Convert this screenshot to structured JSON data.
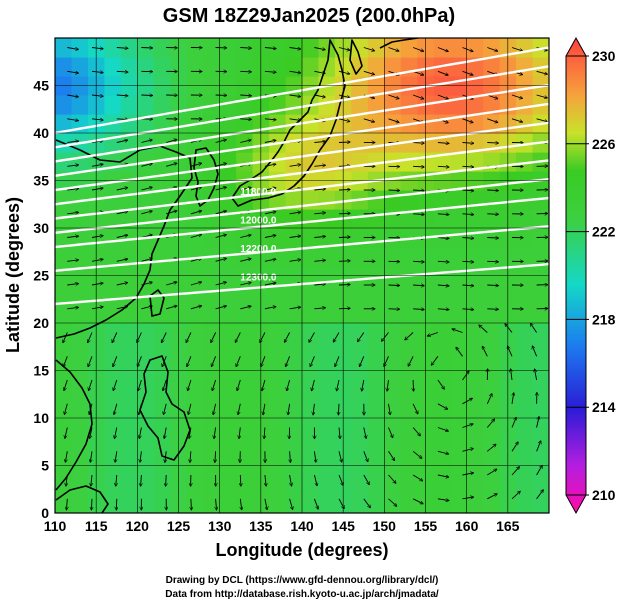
{
  "chart_data": {
    "type": "heatmap",
    "title": "GSM 18Z29Jan2025 (200.0hPa)",
    "xlabel": "Longitude (degrees)",
    "ylabel": "Latitude  (degrees)",
    "xlim": [
      110,
      170
    ],
    "ylim": [
      0,
      50
    ],
    "x_ticks": [
      110,
      115,
      120,
      125,
      130,
      135,
      140,
      145,
      150,
      155,
      160,
      165
    ],
    "y_ticks": [
      0,
      5,
      10,
      15,
      20,
      25,
      30,
      35,
      40,
      45
    ],
    "grid": true,
    "colorbar": {
      "min": 210,
      "max": 230,
      "ticks": [
        210,
        214,
        218,
        222,
        226,
        230
      ],
      "placement": "right"
    },
    "field_description": "Temperature (K) color shading with wind vectors, white isotachs/height contours and coastlines",
    "contour_labels": [
      "12300.0",
      "12200.0",
      "12000.0",
      "11800.0"
    ],
    "credits": [
      "Drawing by DCL (https://www.gfd-dennou.org/library/dcl/)",
      "Data from http://database.rish.kyoto-u.ac.jp/arch/jmadata/"
    ]
  }
}
